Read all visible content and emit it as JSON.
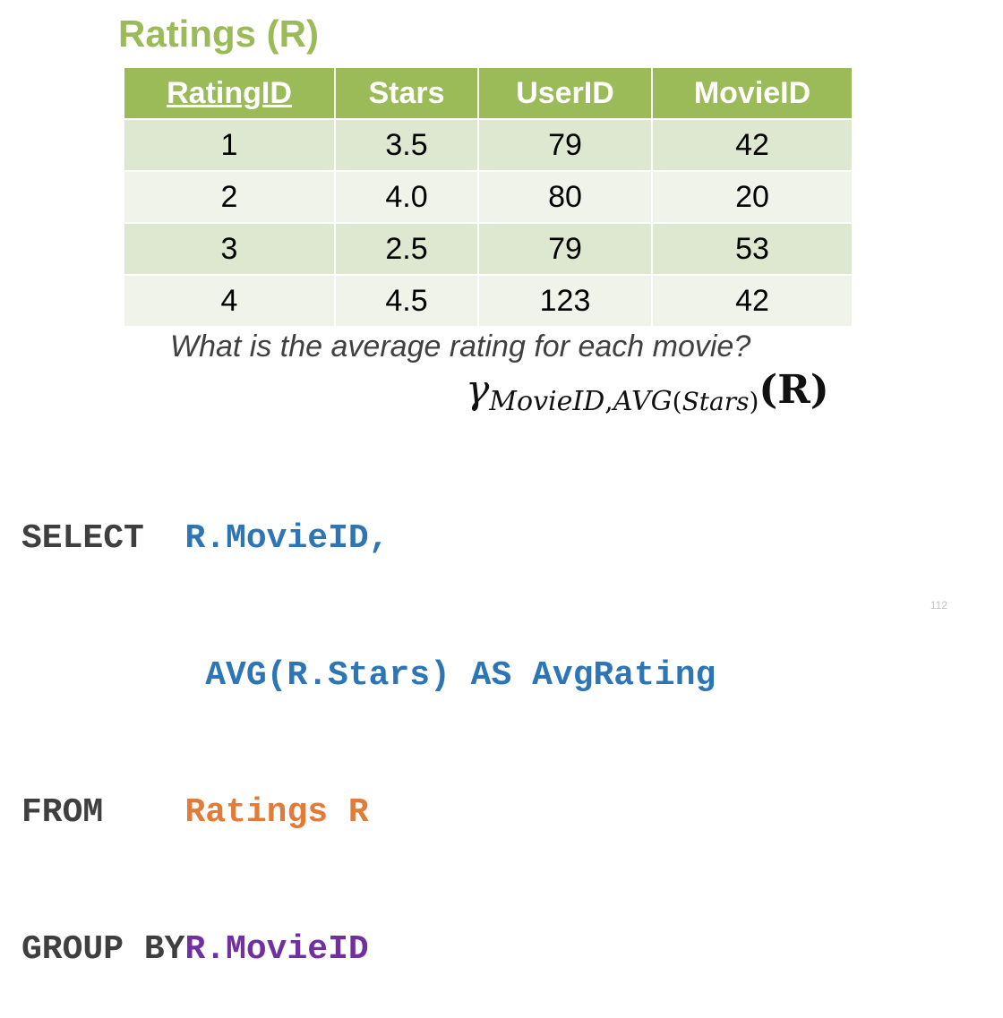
{
  "title": "Ratings (R)",
  "table": {
    "headers": [
      "RatingID",
      "Stars",
      "UserID",
      "MovieID"
    ],
    "rows": [
      [
        "1",
        "3.5",
        "79",
        "42"
      ],
      [
        "2",
        "4.0",
        "80",
        "20"
      ],
      [
        "3",
        "2.5",
        "79",
        "53"
      ],
      [
        "4",
        "4.5",
        "123",
        "42"
      ]
    ],
    "header_color": "#9bbb59",
    "row_colors": [
      "#dee8d0",
      "#eff3ea"
    ]
  },
  "question": "What is the average rating for each movie?",
  "formula": {
    "gamma": "γ",
    "subscript": {
      "group_attr": "MovieID",
      "comma": ",",
      "agg_func": "AVG",
      "open": "(",
      "agg_attr": "Stars",
      "close": ")"
    },
    "open": "(",
    "relation": "R",
    "close": ")"
  },
  "sql": {
    "select_kw": "SELECT",
    "select_col1": "R.MovieID,",
    "select_col2": "AVG(R.Stars) AS AvgRating",
    "from_kw": "FROM",
    "from_table": "Ratings R",
    "groupby_kw": "GROUP BY",
    "groupby_col": "R.MovieID"
  },
  "page_number": "112",
  "colors": {
    "title": "#9bbb59",
    "keyword": "#3f3f3f",
    "select_columns": "#2e75b6",
    "from_table": "#e07b39",
    "group_by": "#7030a0"
  }
}
